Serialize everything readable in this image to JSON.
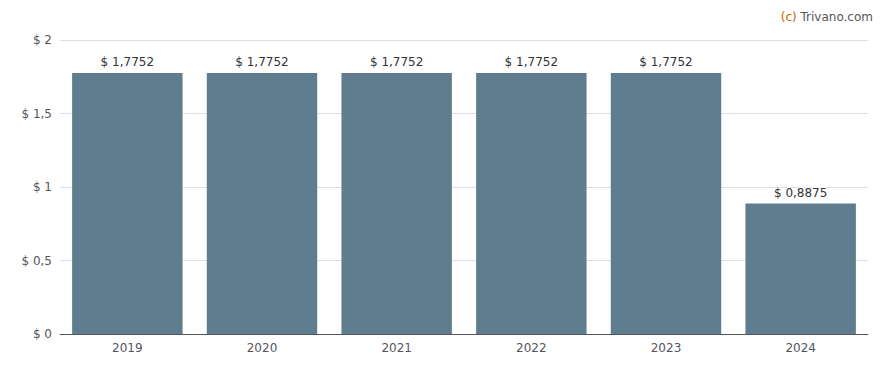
{
  "chart_data": {
    "type": "bar",
    "categories": [
      "2019",
      "2020",
      "2021",
      "2022",
      "2023",
      "2024"
    ],
    "values": [
      1.7752,
      1.7752,
      1.7752,
      1.7752,
      1.7752,
      0.8875
    ],
    "value_labels": [
      "$ 1,7752",
      "$ 1,7752",
      "$ 1,7752",
      "$ 1,7752",
      "$ 1,7752",
      "$ 0,8875"
    ],
    "data_labels": true,
    "color": "#5f7d8e",
    "ylim": [
      0,
      2.0
    ],
    "yticks": [
      {
        "value": 0,
        "label": "$ 0"
      },
      {
        "value": 0.5,
        "label": "$ 0,5"
      },
      {
        "value": 1.0,
        "label": "$ 1"
      },
      {
        "value": 1.5,
        "label": "$ 1,5"
      },
      {
        "value": 2.0,
        "label": "$ 2"
      }
    ],
    "grid": true,
    "annotations": [
      {
        "text": "(c)",
        "color": "#cc6600"
      },
      {
        "text": " Trivano.com",
        "color": "#555555"
      }
    ]
  }
}
